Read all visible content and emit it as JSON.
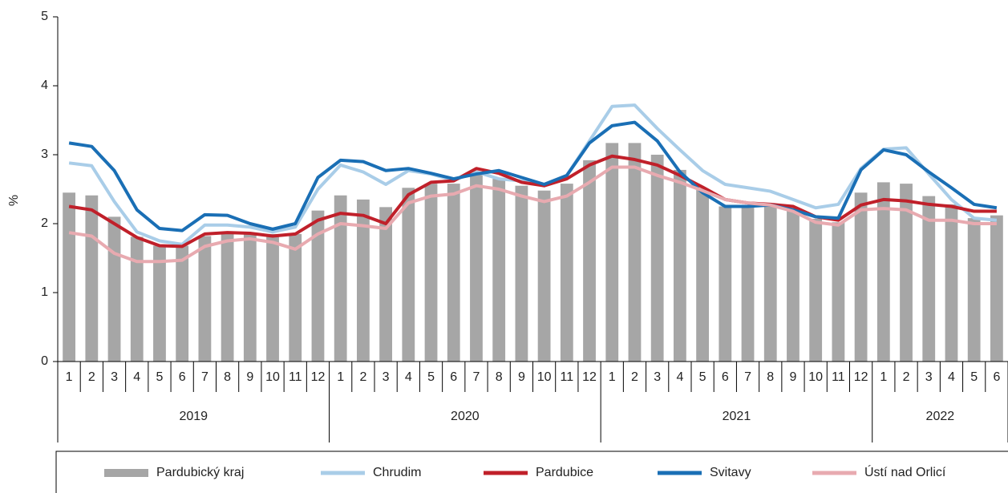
{
  "chart_data": {
    "type": "bar_line",
    "ylabel": "%",
    "categories": [
      "1",
      "2",
      "3",
      "4",
      "5",
      "6",
      "7",
      "8",
      "9",
      "10",
      "11",
      "12",
      "1",
      "2",
      "3",
      "4",
      "5",
      "6",
      "7",
      "8",
      "9",
      "10",
      "11",
      "12",
      "1",
      "2",
      "3",
      "4",
      "5",
      "6",
      "7",
      "8",
      "9",
      "10",
      "11",
      "12",
      "1",
      "2",
      "3",
      "4",
      "5",
      "6"
    ],
    "years": [
      "2019",
      "2020",
      "2021",
      "2022"
    ],
    "ylim": [
      0,
      5
    ],
    "yticks": [
      0,
      1,
      2,
      3,
      4,
      5
    ],
    "series": [
      {
        "name": "Pardubický kraj",
        "kind": "bar",
        "color": "#a6a6a6",
        "values": [
          2.45,
          2.41,
          2.1,
          1.81,
          1.68,
          1.68,
          1.82,
          1.85,
          1.85,
          1.85,
          1.85,
          2.19,
          2.41,
          2.35,
          2.24,
          2.52,
          2.58,
          2.58,
          2.72,
          2.65,
          2.55,
          2.48,
          2.58,
          2.92,
          3.17,
          3.17,
          3.0,
          2.78,
          2.5,
          2.25,
          2.25,
          2.25,
          2.18,
          2.07,
          2.02,
          2.45,
          2.6,
          2.58,
          2.4,
          2.28,
          2.08,
          2.12
        ]
      },
      {
        "name": "Chrudim",
        "kind": "line",
        "color": "#a9cde8",
        "values": [
          2.88,
          2.84,
          2.32,
          1.88,
          1.75,
          1.7,
          1.98,
          1.98,
          1.95,
          1.88,
          1.95,
          2.5,
          2.85,
          2.75,
          2.57,
          2.77,
          2.72,
          2.63,
          2.75,
          2.65,
          2.62,
          2.55,
          2.7,
          3.2,
          3.7,
          3.72,
          3.38,
          3.07,
          2.77,
          2.57,
          2.52,
          2.47,
          2.35,
          2.23,
          2.28,
          2.8,
          3.08,
          3.1,
          2.72,
          2.35,
          2.08,
          2.05
        ]
      },
      {
        "name": "Pardubice",
        "kind": "line",
        "color": "#c0202a",
        "values": [
          2.25,
          2.2,
          2.0,
          1.8,
          1.68,
          1.67,
          1.85,
          1.87,
          1.86,
          1.82,
          1.85,
          2.05,
          2.15,
          2.12,
          2.0,
          2.42,
          2.6,
          2.62,
          2.8,
          2.73,
          2.6,
          2.55,
          2.65,
          2.85,
          2.98,
          2.93,
          2.85,
          2.7,
          2.53,
          2.35,
          2.3,
          2.28,
          2.25,
          2.1,
          2.05,
          2.27,
          2.35,
          2.33,
          2.28,
          2.25,
          2.18,
          2.18
        ]
      },
      {
        "name": "Svitavy",
        "kind": "line",
        "color": "#1a6fb5",
        "values": [
          3.17,
          3.12,
          2.77,
          2.2,
          1.93,
          1.9,
          2.13,
          2.12,
          2.0,
          1.92,
          2.0,
          2.67,
          2.92,
          2.9,
          2.77,
          2.8,
          2.73,
          2.65,
          2.72,
          2.77,
          2.67,
          2.57,
          2.7,
          3.17,
          3.42,
          3.47,
          3.2,
          2.75,
          2.45,
          2.25,
          2.25,
          2.27,
          2.2,
          2.1,
          2.08,
          2.78,
          3.07,
          3.0,
          2.75,
          2.52,
          2.28,
          2.23
        ]
      },
      {
        "name": "Ústí nad Orlicí",
        "kind": "line",
        "color": "#e8aab0",
        "values": [
          1.87,
          1.82,
          1.57,
          1.45,
          1.45,
          1.47,
          1.67,
          1.75,
          1.78,
          1.73,
          1.63,
          1.85,
          2.0,
          1.97,
          1.93,
          2.3,
          2.4,
          2.43,
          2.55,
          2.5,
          2.4,
          2.32,
          2.4,
          2.6,
          2.82,
          2.82,
          2.7,
          2.6,
          2.48,
          2.35,
          2.3,
          2.27,
          2.18,
          2.02,
          1.98,
          2.2,
          2.22,
          2.2,
          2.05,
          2.05,
          2.0,
          2.0
        ]
      }
    ]
  }
}
